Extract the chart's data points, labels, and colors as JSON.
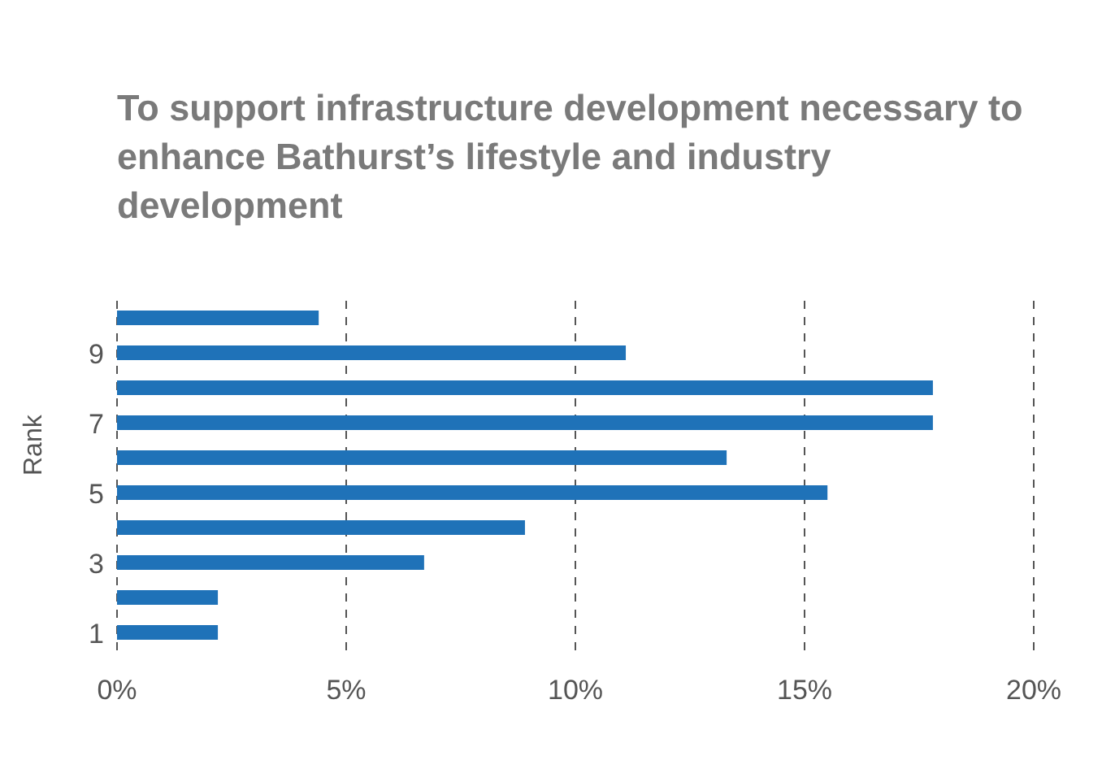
{
  "chart_data": {
    "type": "bar",
    "orientation": "horizontal",
    "title": "To support infrastructure development necessary to enhance Bathurst’s lifestyle and industry development",
    "ylabel": "Rank",
    "categories": [
      null,
      "9",
      null,
      "7",
      null,
      "5",
      null,
      "3",
      null,
      "1"
    ],
    "values": [
      4.4,
      11.1,
      17.8,
      17.8,
      13.3,
      15.5,
      8.9,
      6.7,
      2.2,
      2.2
    ],
    "color": "#1f72b8",
    "xlim": [
      0,
      20
    ],
    "xticks": [
      {
        "value": 0,
        "label": "0%"
      },
      {
        "value": 5,
        "label": "5%"
      },
      {
        "value": 10,
        "label": "10%"
      },
      {
        "value": 15,
        "label": "15%"
      },
      {
        "value": 20,
        "label": "20%"
      }
    ],
    "grid": "x"
  }
}
